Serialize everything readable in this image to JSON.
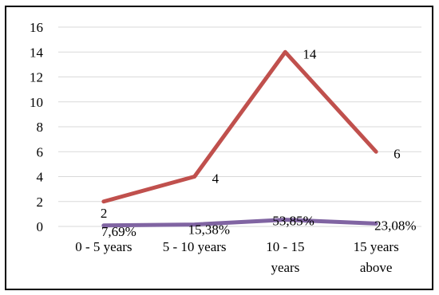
{
  "chart_data": {
    "type": "line",
    "categories": [
      [
        "0 - 5 years"
      ],
      [
        "5 - 10 years"
      ],
      [
        "10 - 15",
        "years"
      ],
      [
        "15 years",
        "above"
      ]
    ],
    "ylim": [
      0,
      16
    ],
    "yticks": [
      "0",
      "2",
      "4",
      "6",
      "8",
      "10",
      "12",
      "14",
      "16"
    ],
    "grid": true,
    "series": [
      {
        "values": [
          2,
          4,
          14,
          6
        ],
        "labels": [
          "2",
          "4",
          "14",
          "6"
        ],
        "color": "#c0504d"
      },
      {
        "values": [
          0.0769,
          0.1538,
          0.5385,
          0.2308
        ],
        "labels": [
          "7,69%",
          "15,38%",
          "53,85%",
          "23,08%"
        ],
        "color": "#8064a2"
      }
    ]
  }
}
